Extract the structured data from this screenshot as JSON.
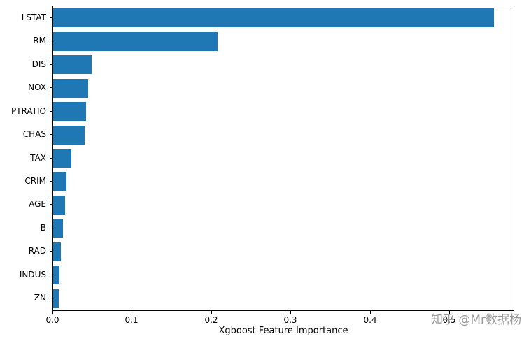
{
  "chart_data": {
    "type": "bar",
    "orientation": "horizontal",
    "title": "",
    "xlabel": "Xgboost Feature Importance",
    "ylabel": "",
    "categories": [
      "LSTAT",
      "RM",
      "DIS",
      "NOX",
      "PTRATIO",
      "CHAS",
      "TAX",
      "CRIM",
      "AGE",
      "B",
      "RAD",
      "INDUS",
      "ZN"
    ],
    "values": [
      0.555,
      0.207,
      0.048,
      0.044,
      0.041,
      0.04,
      0.023,
      0.017,
      0.015,
      0.012,
      0.01,
      0.008,
      0.007
    ],
    "xlim": [
      0,
      0.58
    ],
    "x_ticks": [
      {
        "value": 0.0,
        "label": "0.0"
      },
      {
        "value": 0.1,
        "label": "0.1"
      },
      {
        "value": 0.2,
        "label": "0.2"
      },
      {
        "value": 0.3,
        "label": "0.3"
      },
      {
        "value": 0.4,
        "label": "0.4"
      },
      {
        "value": 0.5,
        "label": "0.5"
      }
    ],
    "bar_color": "#1f77b4",
    "grid": false,
    "legend_position": "none"
  },
  "watermark": {
    "text": "知乎 @Mr数据杨",
    "color": "#9b9b9b"
  }
}
